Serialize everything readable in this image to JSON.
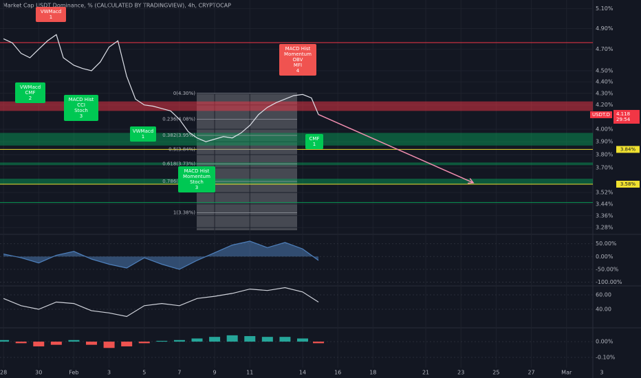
{
  "chart_data": [
    {
      "type": "line",
      "title": "Market Cap USDT Dominance, % (CALCULATED BY TRADINGVIEW), 4h, CRYPTOCAP",
      "log": true,
      "grid": true,
      "xlim": [
        -0.2,
        34.2
      ],
      "ylim": [
        3.24,
        5.19
      ],
      "xticks": [
        {
          "value": 0,
          "label": "28"
        },
        {
          "value": 2,
          "label": "30"
        },
        {
          "value": 4,
          "label": "Feb"
        },
        {
          "value": 6,
          "label": "3"
        },
        {
          "value": 8,
          "label": "5"
        },
        {
          "value": 10,
          "label": "7"
        },
        {
          "value": 12,
          "label": "9"
        },
        {
          "value": 14,
          "label": "11"
        },
        {
          "value": 17,
          "label": "14"
        },
        {
          "value": 19,
          "label": "16"
        },
        {
          "value": 21,
          "label": "18"
        },
        {
          "value": 24,
          "label": "21"
        },
        {
          "value": 26,
          "label": "23"
        },
        {
          "value": 28,
          "label": "25"
        },
        {
          "value": 30,
          "label": "27"
        },
        {
          "value": 32,
          "label": "Mar"
        },
        {
          "value": 34,
          "label": "3"
        }
      ],
      "yticks": [
        {
          "value": 5.1,
          "label": "5.10%"
        },
        {
          "value": 4.9,
          "label": "4.90%"
        },
        {
          "value": 4.7,
          "label": "4.70%"
        },
        {
          "value": 4.5,
          "label": "4.50%"
        },
        {
          "value": 4.4,
          "label": "4.40%"
        },
        {
          "value": 4.3,
          "label": "4.30%"
        },
        {
          "value": 4.2,
          "label": "4.20%"
        },
        {
          "value": 4.0,
          "label": "4.00%"
        },
        {
          "value": 3.9,
          "label": "3.90%"
        },
        {
          "value": 3.8,
          "label": "3.80%"
        },
        {
          "value": 3.7,
          "label": "3.70%"
        },
        {
          "value": 3.52,
          "label": "3.52%"
        },
        {
          "value": 3.44,
          "label": "3.44%"
        },
        {
          "value": 3.36,
          "label": "3.36%"
        },
        {
          "value": 3.28,
          "label": "3.28%"
        }
      ],
      "series": [
        {
          "color": "#e0e3eb",
          "x": [
            0,
            0.5,
            1,
            1.5,
            2,
            2.5,
            3,
            3.4,
            4,
            4.5,
            5,
            5.5,
            6,
            6.5,
            7,
            7.5,
            8,
            8.5,
            9,
            9.5,
            10,
            10.5,
            11,
            11.5,
            12,
            12.5,
            13,
            13.5,
            14,
            14.5,
            15,
            15.5,
            16,
            16.5,
            17,
            17.5,
            17.9
          ],
          "values": [
            4.8,
            4.76,
            4.66,
            4.62,
            4.7,
            4.78,
            4.84,
            4.62,
            4.55,
            4.52,
            4.5,
            4.58,
            4.72,
            4.78,
            4.45,
            4.25,
            4.2,
            4.19,
            4.17,
            4.15,
            4.08,
            3.98,
            3.93,
            3.9,
            3.92,
            3.94,
            3.93,
            3.97,
            4.03,
            4.12,
            4.18,
            4.22,
            4.25,
            4.28,
            4.29,
            4.26,
            4.12
          ]
        }
      ],
      "zones": [
        {
          "from": 4.15,
          "to": 4.23,
          "color": "#f2364580"
        },
        {
          "from": 3.87,
          "to": 3.97,
          "color": "#08995680"
        },
        {
          "from": 3.72,
          "to": 3.74,
          "color": "#08995680"
        },
        {
          "from": 3.58,
          "to": 3.62,
          "color": "#08995680"
        }
      ],
      "levels": [
        {
          "value": 4.763,
          "color": "#f23645"
        },
        {
          "value": 3.84,
          "color": "#f0e130"
        },
        {
          "value": 3.58,
          "color": "#f0e130"
        },
        {
          "value": 3.45,
          "color": "#089956"
        }
      ],
      "fib": [
        {
          "value": 4.3,
          "label": "0(4.30%)"
        },
        {
          "value": 4.08,
          "label": "0.236(4.08%)"
        },
        {
          "value": 3.95,
          "label": "0.382(3.95%)"
        },
        {
          "value": 3.84,
          "label": "0.5(3.84%)"
        },
        {
          "value": 3.73,
          "label": "0.618(3.73%)"
        },
        {
          "value": 3.6,
          "label": "0.786(3.60%)"
        },
        {
          "value": 3.38,
          "label": "1(3.38%)"
        }
      ],
      "projection": {
        "x": [
          17.9,
          26.7
        ],
        "values": [
          4.12,
          3.59
        ],
        "color": "#f48fb1"
      },
      "price_labels": [
        {
          "value": 3.84,
          "label": "3.84%"
        },
        {
          "value": 3.58,
          "label": "3.58%"
        }
      ],
      "symbol": "USDT.D",
      "last_price": {
        "value": 4.118,
        "label": "4.118"
      },
      "countdown": "29:54",
      "annotations": [
        {
          "lines": [
            "VWMacd",
            "1"
          ],
          "color": "#f05350"
        },
        {
          "lines": [
            "VWMacd",
            "CMF",
            "2"
          ],
          "color": "#00c853"
        },
        {
          "lines": [
            "MACD Hist",
            "CCI",
            "Stoch",
            "3"
          ],
          "color": "#00c853"
        },
        {
          "lines": [
            "VWMacd",
            "1"
          ],
          "color": "#00c853"
        },
        {
          "lines": [
            "MACD Hist",
            "Momentum",
            "Stoch",
            "3"
          ],
          "color": "#00c853"
        },
        {
          "lines": [
            "MACD Hist",
            "Momentum",
            "OBV",
            "MFI",
            "4"
          ],
          "color": "#f05350"
        },
        {
          "lines": [
            "CMF",
            "1"
          ],
          "color": "#00c853"
        }
      ]
    },
    {
      "type": "area",
      "ylim": [
        -112,
        84
      ],
      "yticks": [
        {
          "value": 50,
          "label": "50.00%"
        },
        {
          "value": 0,
          "label": "0.00%"
        },
        {
          "value": -50,
          "label": "-50.00%"
        },
        {
          "value": -100,
          "label": "-100.00%"
        }
      ],
      "series": [
        {
          "color": "#4f81bd",
          "x": [
            0,
            1,
            2,
            3,
            4,
            5,
            6,
            7,
            8,
            9,
            10,
            11,
            12,
            13,
            14,
            15,
            16,
            17,
            17.9
          ],
          "values": [
            10,
            -5,
            -25,
            5,
            20,
            -10,
            -30,
            -45,
            -5,
            -30,
            -50,
            -15,
            15,
            45,
            60,
            35,
            55,
            30,
            -15
          ]
        }
      ]
    },
    {
      "type": "line",
      "ylim": [
        16.2,
        70.5
      ],
      "yticks": [
        {
          "value": 60,
          "label": "60.00"
        },
        {
          "value": 40,
          "label": "40.00"
        }
      ],
      "series": [
        {
          "color": "#d1d4dc",
          "x": [
            0,
            1,
            2,
            3,
            4,
            5,
            6,
            7,
            8,
            9,
            10,
            11,
            12,
            13,
            14,
            15,
            16,
            17,
            17.9
          ],
          "values": [
            55,
            45,
            40,
            50,
            48,
            38,
            35,
            30,
            45,
            48,
            45,
            55,
            58,
            62,
            68,
            66,
            70,
            64,
            50
          ]
        }
      ]
    },
    {
      "type": "bar",
      "ylim": [
        -0.165,
        0.083
      ],
      "colors": {
        "up": "#26a69a",
        "down": "#ef5350"
      },
      "yticks": [
        {
          "value": 0,
          "label": "0.00%"
        },
        {
          "value": -0.1,
          "label": "-0.10%"
        }
      ],
      "series": [
        {
          "x": [
            0,
            1,
            2,
            3,
            4,
            5,
            6,
            7,
            8,
            9,
            10,
            11,
            12,
            13,
            14,
            15,
            16,
            17,
            17.9
          ],
          "values": [
            0.01,
            -0.01,
            -0.03,
            -0.02,
            0.01,
            -0.02,
            -0.04,
            -0.03,
            -0.01,
            0.005,
            0.01,
            0.02,
            0.03,
            0.04,
            0.035,
            0.03,
            0.03,
            0.02,
            -0.01
          ]
        }
      ]
    }
  ]
}
